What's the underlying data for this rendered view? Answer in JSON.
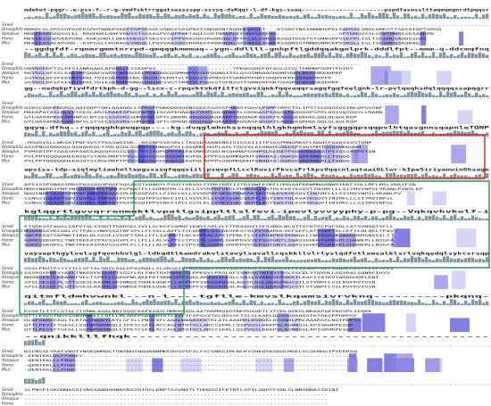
{
  "alignment": {
    "species": [
      "Smed",
      "Drosophila",
      "Xenopus",
      "Homo",
      "Mus"
    ],
    "colors": {
      "conservation_bar": "#7f9aa4",
      "shade_dark": "#5b55d8",
      "shade_mid": "#8f8ae6",
      "shade_light": "#c8c6f4",
      "box_red": "#d81e1e",
      "box_green": "#1e9a55"
    },
    "blocks": [
      {
        "consensus": "mdeket-pggr--e-pss-f--r-g-vmdfsktrrggatsasssspp-ssssq-dsKqqr-l-df-kgs-ssaq----------------------pspdfaswsslttaqmqmgnrdtpqqsr",
        "rows": [
          "-------------------------------------------------------------------------------------------------------------------------------",
          "MDKDLSLSPSSGPAVEGSPHTNDKPSKEFFGPSEGGLVSNSVSASPDSTSNGQSNTDQQHFQKQLT---ATGDSTNGINNNHVPELSAHSSLSMGLHMEGTTSASSIAPTSRGQ",
          "MDKERSRGQQSGLEL-RDGHQKLHHFVRDSSTSSSASPVSQPPAETAQISSKTNRQRLEFQNSSASEAS-----------------VPTDMGVSYLSSWTMNGSSESAQRPR",
          "MEKERSSGDGAAPGRD-RGKSHDLLQKEFHEGSTSRSVSSSPPVAASQGSRGDKQQLDFFKLSLSGNSSASQQTDGQTGTGNNSRPVSEPPLTSLTSGSNESAQDSSGQS",
          "MEKESSSAEAPGRD--EVPGSLLRGRAGSVWDQLLPQYVAASQGSRHAEFFKDKRQRLGFFNISLSGNSASQQNSGTNNNSNNCRPVSDSLLSSLTSGSNEQSAQRAQ"
        ]
      },
      {
        "consensus": "--ggdgfdf-rqnmrgmmtnrrpd-qmqqgkmmmaq--ygn-ddllll-gnhpftlgddqqakgnlprk-dddlfpt--mmm-q-ddcmqfnq",
        "rows": [
          "--------------------------------------------------------------------------------------------",
          "GNYRGFDFTSLEESIANRQAKLAPDKLLEISEDPGG---------------------TPKQGGDGFDFAGLGIGLTHNMNPGGMTPGYRT",
          "RKYRGLDFSSLEAGIMPQQAEVARVLNGHVAELPDNVAGGQSMRNPVSSHFDQNAISSLQSGGNRAAGHQNFHQKLNAGSNQHHPRP",
          "SGYKGLDFSFEEENIVKKLTDIESEPHHSHDLVKSSLTERNTVLPSGSSTGPNSGTFGRNVPFHRTGHQPHFRFQDAQERRPPP",
          "SGYRGLDFSFEEENIVKKLSDIESEPHRPHNQLHHSHESVGTTRNTVLPSGSSTGPNSGTFGRNVPFHRTGHQPHFRFQDAQERRP"
        ]
      },
      {
        "consensus": "gg--nedqkpfiydfdrtkph-d-gg--lscv-c-rpqvktvkdfitfclgvviqnkfqqvaqqrsagqfgqfeelgnk-lr-pvlqeqhsdqlqqqqssapqgrr",
        "rows": [
          "-----------------------------------------------------------------------------------------------------",
          "QIRGCQQHENGRQLQQIQQPTQKLQAAQQLLSPRAPPQNQQQQQGNSQQGSGGGSPNNASYQQVLPAMPTRRSTSLIPSTSLDQGGGSINLQPGSGNF",
          "MAEAPATASCHLLVTEESLARSLRAKESPNGENPSSISGSPEHAQQLFGHFGQLQRNVSLGSHQASPSAQSSPAQGGSPSPPLQSVVQSGQYLLMAMQ",
          "GTLHAVAPKQEAMGNPSLNTSELSSAVRSSHMQPHLSPTLQRKNLHQQQQQAQAARPTQQQAHFQGQRTEAGGGEQRHQLQQLQLQGLRQP",
          "GTLHAVAPKQEAMGNPSLSTSELSSAVRSSHMQPHLSPTLQRKNLHQQQQQAQAARPAAQQAHFQGQRTEAGGGEQRHQLQQLQLQGLRQP"
        ]
      },
      {
        "consensus": "gqyq-dfhq--rqqqqghkpeqpqp----kg-dvqglmhnhssnqqqlhlgkhqmhmlsyfsgggqpsqqpvlhtqasgnnsqapnleTQNP",
        "rows": [
          "-MSQGVSLLWKSKTPDFSVSTPSSSWSIQR--NSGNPSVEGRLLTKQSDRAANSNGISIGSAIIITPSGSPMNGMKSFLNAHSFQAQSSVGTQNP",
          "ASSPNGSQQQQQLQGQQHSQLYSHLQGGLGGQSPGKHNGQPSLLQAQMHLHGPLASLTGGVSLASHNAHGGKSSPSAQVMMTQGQQMHQQNM",
          "PVMSDTPPTGAASRPAAESAQVQPAVSSVSSTPSTSQPQTRTPSPASNHSPQQLNSQHMAPSQHPSLRLGATPGQHGMAAAQTPSSSSSSSPGTQN",
          "PVLPPTQQQQQHEEHSQTSTAHLMRPTPVSSSQSGGGGGGQGGTASPQLAPPPSSQHMHQHHTSNHDAS-GQRSVSRPAWERLLTQQQQ",
          "PVLPPTQQQQQHEEHSQTSTAHLMRPTPVSSSQSGGGGGGQGGAASPQLAPPPSSQHMHQHHTSNHDAS-GQRSVSRPAWERLLTQQQQ"
        ]
      },
      {
        "consensus": "apsiss-tdp-siqlmyliaahnllepgssssqfqqqsiillpsqvpfLLcclKuvirFkvcsFrlkpsVqqcnlaqtaaiGLlwr-kIpeSiriyanwinGhsagn",
        "rows": [
          "APSISSPSNASSMQVPQSSQSHPAAFSQSASQTVDNHYLPSHYYVKVSLFFMKTKMIIITRIAWFEGKFLHHSAQPKRWMNSKNWVIKKFIHLLMFLMSLVKKYFSN",
          "MMSSNDRKSPNFVNLAGSKMRSTQMLPSPNATFLLGGMQFMLCLKLLSVVRPRFVKSLPDNKRKIWSTHLKVAYKGQVTINIMFLLLSIYMVYNPSLVKANLPVWSLKP",
          "NQGSNDFTASPSPNVNFYNDVPVAASSPLDSQGPAPLLFIACLKLLSVVRPRFVKSLPDNKRKIWSTHLKVAYKGQVTINIMFLLLSIYMVYNPSLVKANLPV",
          "SSNGSIQEADPSDVIQQPLLTNPAAIPGTPVSQTPPSFNFFIPLLVSVLKLLVVKYSGKLQEPTLKGTIWSTHLKVAYKGQVTINIMFLLLSIYMVYNPSL",
          "SSNGSIQEADPSDVIQQPLLTNPAAIPGTPVSQTPPSFNFFIPLLVSVLKLLVVKYSGKLQEPTLKGTIWSTHLKVAYKGQVTINIMFLLLSIYMVYNPSL"
        ]
      },
      {
        "consensus": "kglqgrtlgvvqrrenmnktlvpatlgsippltlslfevi-ipevlyvvyyphy-p-pg--Vqkqvhvkelf-i",
        "rows": [
          "ETSRKSSFAQSLSAPVTQLIIHGTTSDRSELIVLLSCKGIYAMHCYKWYFSRLVLFTPRAADVISESVNQLWLQTTSFRTPCPQFSDLCATSVNRATSFLL",
          "NQKRNGSVKLQKLVCTPALLHWVSSATNFSPLLFLVSLLAVFLYVLQHRPLSSLAKSHESCRLPVVAARHLVKFAEFLATEQNPTSLCEFILHLQELTPAV",
          "SNSPKSQTGAPNKTIRALDLSGGEIVSGPTSRLLFFLIAVMVTLHCAYPEALIPSIPPNLFLVIQRSAPKEIKRNQLLCWVAGRVKQWARDKMSNSSILT",
          "GDKRSQKGPELTNKTKEEAIPAVSSGVPLFLLFLLLALVLPFLCYPGIYLSGRMLGHHPDVVSEPGSFGNTLSQASSEHHVTSPRGPLCHAWEPLLNSGFA",
          "GDKRSQKGPELTNKTKEEAIPAVSSGVPLFLLFLLLALVLPFLCYPGIYLSGRMLGHHPDVVSEPGSFGNTLSQASSEHHVTSPRGPLCHAWEPLLNSGFA"
        ]
      },
      {
        "consensus": "vaysepthgylvelsgfqvnhhvlgl-ldkqdtlkamdrakvlstavylsavallcqskkllvlrlyslqdfvtlsmsalklsrlvqkqedqlsykcsrsqp",
        "rows": [
          "GSSLPDSTEYIYYILLVFTALGRVLSQLDPAVRQLLSLSRGQILTHQMKAQVSSSYSALHIRSLSSSKDGCKLFEIQSRHTALFSSNSLMVEFFLVFYFLV",
          "SSSRGSPNGVYAVLTNKDVEKSLHTTSSSFLRLFNVTRYPAMAYSLPPEQYLPRSLQFSVNPGGTHTSVYFGLSSCDLVTQVHLLGGVRALSQNRFIHYS",
          "NQGNSKDTLKEAMKFVLLTSPELLLSHVPWLAKEPDTSKNGAPPSQKLARVHSILEALLSASLSVKNVSDFQKKTLKAFIIATKVTWSDDGDELKNI",
          "SPSLSESGLPLSTTSSESLRAVMLSFVWNSETHHEEQGKTLLSVPKPFSVRGSAHSGLAGLDLQSLSEAGPNSCVILVTVNPFLVSLRVFRVTVSN",
          "SPSLSESGLPLSTTSSESLRAVMLSFVWNSETHHEEQGKTLLSVPKPFSVRGSAHSGLAGLDLQSLSEAGPNSCVILVTVNPFLVSLRVFRVTVSN"
        ]
      },
      {
        "consensus": "qitmfldmhvwnkl---n-l----tgflle-kmvslkqamsivrvknq----------pkqnq-",
        "rows": [
          "KVSKTLITFLGTQLYTSMWLAGALNDYSQQCKAFKGASLMMKKHQGLAATDRMHVAGTNEPDSQETLYTGDLQVKGLNRAAPAEVHGSPLIEQKK",
          "QTTLEAVGTNGYGSNGRWKLLLQFLLMLSKEPGALRHIATLYVLTFSPSGVTKLHSSGFTSLGLKAPLDQSHGDKQQSTKTRKSPPHPPGF",
          "DLAFGKMCEAQLTLRTAEVWQKTLKTLGFILLPNVCVFLAAALWWAASEKTKLATLAAAMELDSDQKLKGSNDLPRLAAARGSLNGTPDPTQ",
          "QTTLPEVIFTGEGLLGSFWPWRMRQLLIPEYCSFFLACCAGLWTHTVCLARCCSKRLLQSPVSSLRKKPVLAGNNSGLAPIGRHRPESQP",
          "QTTLPEVIFTGEGLLGSFWPWRMRQLLIPEYCSFFLACCAGLWTHTVCLARCCSKRLLQSPVSSLRKKPVLAGNNSGLAPIGRHRPESQP"
        ]
      },
      {
        "consensus": "--qnikklllfhqk-----------------------------------------------",
        "rows": [
          "KSLNSSLYRAFVNQTYNGKQNMDGTGNSNHTNQQDNNMKENVGVGFSLFSCVNDSIMLNLKYGHEQSKSRQLMDELGCGEMHGIPVEERSQ",
          "-EENIKKLVLFFHQKY--------------------------------------------------------------------------",
          "-QENIKKLLLFNQK---------------------------------------------------------------------------",
          "-QENIKKLLLFHQK---------------------------------------------------------------------------",
          "-QENIKKLLLFHQK---------------------------------------------------------------------------"
        ]
      },
      {
        "consensus": "",
        "rows": [
          "SLPNSPIGKGNNASQIVNSAANQQHNQSNSVQIHSLDNPTSSVNATLTHHQSSIFKTNTLSPVLQDHTFSNLSLNNSNNAISDINI",
          "-----------------------------------------------------------------------------------",
          "-----------------------------------------------------------------------------------",
          "-----------------------------------------------------------------------------------",
          "-----------------------------------------------------------------------------------"
        ]
      }
    ]
  }
}
